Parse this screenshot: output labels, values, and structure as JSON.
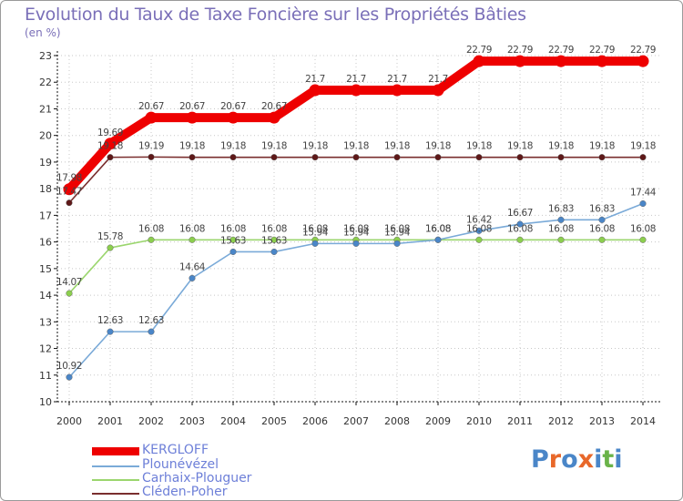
{
  "title": "Evolution du Taux de Taxe Foncière sur les Propriétés Bâties",
  "subtitle": "(en %)",
  "logo": {
    "text": "Proxiti",
    "colors": [
      "#4a86c8",
      "#e8682a",
      "#4a86c8",
      "#e8682a",
      "#4a86c8",
      "#6ab34a",
      "#4a86c8"
    ]
  },
  "chart_data": {
    "type": "line",
    "title": "Evolution du Taux de Taxe Foncière sur les Propriétés Bâties",
    "ylabel": "(en %)",
    "xlabel": "",
    "ylim": [
      10,
      23
    ],
    "yticks": [
      "10",
      "11",
      "12",
      "13",
      "14",
      "15",
      "16",
      "17",
      "18",
      "19",
      "20",
      "21",
      "22",
      "23"
    ],
    "categories": [
      "2000",
      "2001",
      "2002",
      "2003",
      "2004",
      "2005",
      "2006",
      "2007",
      "2008",
      "2009",
      "2010",
      "2011",
      "2012",
      "2013",
      "2014"
    ],
    "series": [
      {
        "name": "Cléden-Poher",
        "color": "#7a2e2e",
        "values": [
          17.47,
          19.18,
          19.19,
          19.18,
          19.18,
          19.18,
          19.18,
          19.18,
          19.18,
          19.18,
          19.18,
          19.18,
          19.18,
          19.18,
          19.18
        ],
        "labels": [
          "17.47",
          "19.18",
          "19.19",
          "19.18",
          "19.18",
          "19.18",
          "19.18",
          "19.18",
          "19.18",
          "19.18",
          "19.18",
          "19.18",
          "19.18",
          "19.18",
          "19.18"
        ]
      },
      {
        "name": "Carhaix-Plouguer",
        "color": "#9bd66e",
        "values": [
          14.07,
          15.78,
          16.08,
          16.08,
          16.08,
          16.08,
          16.08,
          16.08,
          16.08,
          16.08,
          16.08,
          16.08,
          16.08,
          16.08,
          16.08
        ],
        "labels": [
          "14.07",
          "15.78",
          "16.08",
          "16.08",
          "16.08",
          "16.08",
          "16.08",
          "16.08",
          "16.08",
          "16.08",
          "16.08",
          "16.08",
          "16.08",
          "16.08",
          "16.08"
        ]
      },
      {
        "name": "Plounévézel",
        "color": "#7aaad8",
        "values": [
          10.92,
          12.63,
          12.63,
          14.64,
          15.63,
          15.63,
          15.94,
          15.94,
          15.94,
          16.08,
          16.42,
          16.67,
          16.83,
          16.83,
          17.44
        ],
        "labels": [
          "10.92",
          "12.63",
          "12.63",
          "14.64",
          "15.63",
          "15.63",
          "15.94",
          "15.94",
          "15.94",
          "16.08",
          "16.42",
          "16.67",
          "16.83",
          "16.83",
          "17.44"
        ]
      },
      {
        "name": "KERGLOFF",
        "color": "#ee0000",
        "values": [
          17.98,
          19.69,
          20.67,
          20.67,
          20.67,
          20.67,
          21.7,
          21.7,
          21.7,
          21.7,
          22.79,
          22.79,
          22.79,
          22.79,
          22.79
        ],
        "labels": [
          "17.98",
          "19.69",
          "20.67",
          "20.67",
          "20.67",
          "20.67",
          "21.7",
          "21.7",
          "21.7",
          "21.7",
          "22.79",
          "22.79",
          "22.79",
          "22.79",
          "22.79"
        ]
      }
    ]
  },
  "legend": [
    {
      "label": "KERGLOFF",
      "color": "#ee0000"
    },
    {
      "label": "Plounévézel",
      "color": "#7aaad8"
    },
    {
      "label": "Carhaix-Plouguer",
      "color": "#9bd66e"
    },
    {
      "label": "Cléden-Poher",
      "color": "#7a2e2e"
    }
  ]
}
